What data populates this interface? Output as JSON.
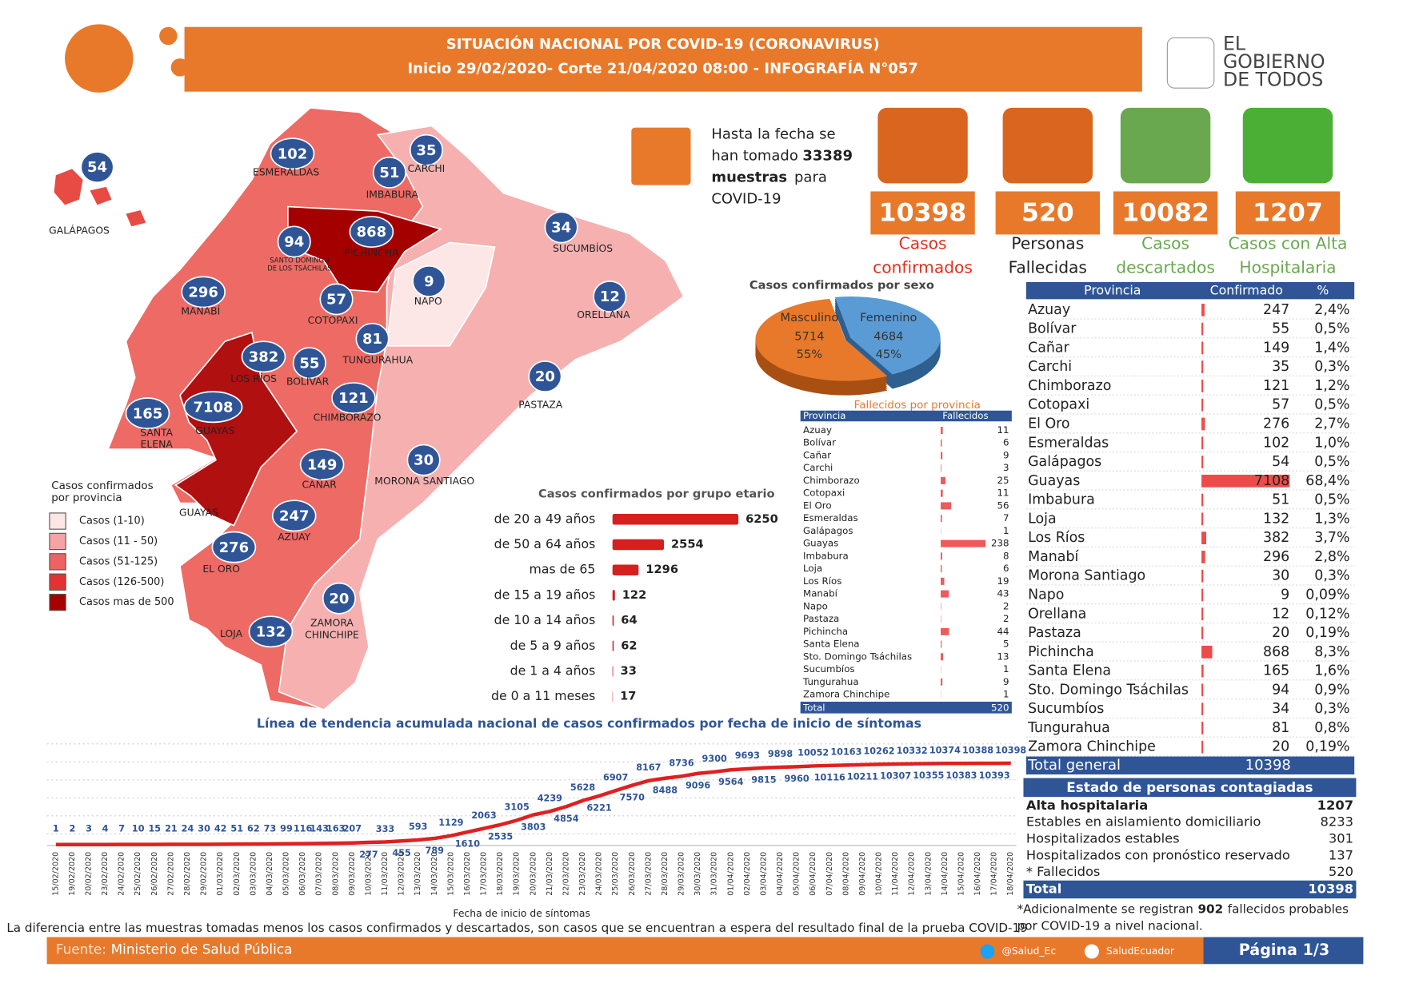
{
  "header": {
    "title": "SITUACIÓN NACIONAL POR  COVID-19 (CORONAVIRUS)",
    "subtitle": "Inicio 29/02/2020- Corte 21/04/2020 08:00  - INFOGRAFÍA N°057"
  },
  "logo": [
    "EL",
    "GOBIERNO",
    "DE TODOS"
  ],
  "samples": {
    "line1": "Hasta la fecha se",
    "line2": "han tomado",
    "count": 33389,
    "line3": "muestras",
    "line3b": "para",
    "line4": "COVID-19"
  },
  "kpis": [
    {
      "value": 10398,
      "label": [
        "Casos",
        "confirmados"
      ],
      "color": "#e0301e"
    },
    {
      "value": 520,
      "label": [
        "Personas",
        "Fallecidas"
      ],
      "color": "#222222"
    },
    {
      "value": 10082,
      "label": [
        "Casos",
        "descartados"
      ],
      "color": "#6aa84f"
    },
    {
      "value": 1207,
      "label": [
        "Casos con Alta",
        "Hospitalaria"
      ],
      "color": "#6aa84f"
    }
  ],
  "map": {
    "provinces": [
      {
        "name": [
          "GALÁPAGOS"
        ],
        "value": 54
      },
      {
        "name": [
          "ESMERALDAS"
        ],
        "value": 102
      },
      {
        "name": [
          "CARCHI"
        ],
        "value": 35
      },
      {
        "name": [
          "IMBABURA"
        ],
        "value": 51
      },
      {
        "name": [
          "PICHINCHA"
        ],
        "value": 868
      },
      {
        "name": [
          "SANTO DOMINGO",
          "DE LOS TSÁCHILAS"
        ],
        "value": 94
      },
      {
        "name": [
          "SUCUMBÍOS"
        ],
        "value": 34
      },
      {
        "name": [
          "NAPO"
        ],
        "value": 9
      },
      {
        "name": [
          "ORELLANA"
        ],
        "value": 12
      },
      {
        "name": [
          "MANABÍ"
        ],
        "value": 296
      },
      {
        "name": [
          "COTOPAXI"
        ],
        "value": 57
      },
      {
        "name": [
          "TUNGURAHUA"
        ],
        "value": 81
      },
      {
        "name": [
          "LOS RÍOS"
        ],
        "value": 382
      },
      {
        "name": [
          "BOLÍVAR"
        ],
        "value": 55
      },
      {
        "name": [
          "PASTAZA"
        ],
        "value": 20
      },
      {
        "name": [
          "CHIMBORAZO"
        ],
        "value": 121
      },
      {
        "name": [
          "SANTA",
          "ELENA"
        ],
        "value": 165
      },
      {
        "name": [
          "GUAYAS"
        ],
        "value": 7108
      },
      {
        "name": [
          "MORONA SANTIAGO"
        ],
        "value": 30
      },
      {
        "name": [
          "CAÑAR"
        ],
        "value": 149
      },
      {
        "name": [
          "AZUAY"
        ],
        "value": 247
      },
      {
        "name": [
          "EL ORO"
        ],
        "value": 276
      },
      {
        "name": [
          "ZAMORA",
          "CHINCHIPE"
        ],
        "value": 20
      },
      {
        "name": [
          "LOJA"
        ],
        "value": 132
      }
    ],
    "legend": {
      "title": [
        "Casos confirmados",
        "por provincia"
      ],
      "items": [
        {
          "label": "Casos (1-10)",
          "color": "#fde6e6"
        },
        {
          "label": "Casos (11 - 50)",
          "color": "#f5a3a3"
        },
        {
          "label": "Casos (51-125)",
          "color": "#ef6262"
        },
        {
          "label": "Casos (126-500)",
          "color": "#e43232"
        },
        {
          "label": "Casos mas de 500",
          "color": "#a80000"
        }
      ]
    }
  },
  "sex_pie": {
    "title": "Casos confirmados por sexo",
    "slices": [
      {
        "name": "Femenino",
        "value": 4684,
        "percent": "45%",
        "color": "#5b9bd5"
      },
      {
        "name": "Masculino",
        "value": 5714,
        "percent": "55%",
        "color": "#e8792b"
      }
    ]
  },
  "age_chart": {
    "title": "Casos confirmados por grupo etario",
    "categories": [
      "de 20 a 49 años",
      "de 50 a 64 años",
      "mas de 65",
      "de 15 a 19 años",
      "de 10 a 14 años",
      "de 5 a 9 años",
      "de 1 a 4 años",
      "de 0 a 11 meses"
    ],
    "values": [
      6250,
      2554,
      1296,
      122,
      64,
      62,
      33,
      17
    ],
    "color": "#d61f1f"
  },
  "deaths_table": {
    "title": "Fallecidos por provincia",
    "columns": [
      "Provincia",
      "Fallecidos"
    ],
    "rows": [
      [
        "Azuay",
        11
      ],
      [
        "Bolívar",
        6
      ],
      [
        "Cañar",
        9
      ],
      [
        "Carchi",
        3
      ],
      [
        "Chimborazo",
        25
      ],
      [
        "Cotopaxi",
        11
      ],
      [
        "El Oro",
        56
      ],
      [
        "Esmeraldas",
        7
      ],
      [
        "Galápagos",
        1
      ],
      [
        "Guayas",
        238
      ],
      [
        "Imbabura",
        8
      ],
      [
        "Loja",
        6
      ],
      [
        "Los Ríos",
        19
      ],
      [
        "Manabí",
        43
      ],
      [
        "Napo",
        2
      ],
      [
        "Pastaza",
        2
      ],
      [
        "Pichincha",
        44
      ],
      [
        "Santa Elena",
        5
      ],
      [
        "Sto. Domingo Tsáchilas",
        13
      ],
      [
        "Sucumbíos",
        1
      ],
      [
        "Tungurahua",
        9
      ],
      [
        "Zamora Chinchipe",
        1
      ]
    ],
    "total": [
      "Total",
      520
    ]
  },
  "province_table": {
    "columns": [
      "Provincia",
      "Confirmado",
      "%"
    ],
    "rows": [
      [
        "Azuay",
        247,
        "2,4%"
      ],
      [
        "Bolívar",
        55,
        "0,5%"
      ],
      [
        "Cañar",
        149,
        "1,4%"
      ],
      [
        "Carchi",
        35,
        "0,3%"
      ],
      [
        "Chimborazo",
        121,
        "1,2%"
      ],
      [
        "Cotopaxi",
        57,
        "0,5%"
      ],
      [
        "El Oro",
        276,
        "2,7%"
      ],
      [
        "Esmeraldas",
        102,
        "1,0%"
      ],
      [
        "Galápagos",
        54,
        "0,5%"
      ],
      [
        "Guayas",
        7108,
        "68,4%"
      ],
      [
        "Imbabura",
        51,
        "0,5%"
      ],
      [
        "Loja",
        132,
        "1,3%"
      ],
      [
        "Los Ríos",
        382,
        "3,7%"
      ],
      [
        "Manabí",
        296,
        "2,8%"
      ],
      [
        "Morona Santiago",
        30,
        "0,3%"
      ],
      [
        "Napo",
        9,
        "0,09%"
      ],
      [
        "Orellana",
        12,
        "0,12%"
      ],
      [
        "Pastaza",
        20,
        "0,19%"
      ],
      [
        "Pichincha",
        868,
        "8,3%"
      ],
      [
        "Santa Elena",
        165,
        "1,6%"
      ],
      [
        "Sto. Domingo Tsáchilas",
        94,
        "0,9%"
      ],
      [
        "Sucumbíos",
        34,
        "0,3%"
      ],
      [
        "Tungurahua",
        81,
        "0,8%"
      ],
      [
        "Zamora Chinchipe",
        20,
        "0,19%"
      ]
    ],
    "total": [
      "Total general",
      10398
    ]
  },
  "status_table": {
    "title": "Estado de personas contagiadas",
    "rows": [
      [
        "Alta hospitalaria",
        1207
      ],
      [
        "Estables en aislamiento domiciliario",
        8233
      ],
      [
        "Hospitalizados estables",
        301
      ],
      [
        "Hospitalizados con pronóstico reservado",
        137
      ],
      [
        "* Fallecidos",
        520
      ]
    ],
    "total": [
      "Total",
      10398
    ]
  },
  "footnote": {
    "before": "*Adicionalmente se registran",
    "count": 902,
    "after1": "fallecidos probables",
    "after2": "por COVID-19 a nivel nacional."
  },
  "trend": {
    "title": "Línea de tendencia acumulada nacional de casos confirmados por fecha de inicio de síntomas",
    "x_label": "Fecha de inicio de síntomas",
    "color": "#e02020",
    "x": [
      "15/02/2020",
      "19/02/2020",
      "20/02/2020",
      "23/02/2020",
      "24/02/2020",
      "25/02/2020",
      "26/02/2020",
      "27/02/2020",
      "28/02/2020",
      "29/02/2020",
      "01/03/2020",
      "02/03/2020",
      "03/03/2020",
      "04/03/2020",
      "05/03/2020",
      "06/03/2020",
      "07/03/2020",
      "08/03/2020",
      "09/03/2020",
      "10/03/2020",
      "11/03/2020",
      "12/03/2020",
      "13/03/2020",
      "14/03/2020",
      "15/03/2020",
      "16/03/2020",
      "17/03/2020",
      "18/03/2020",
      "19/03/2020",
      "20/03/2020",
      "21/03/2020",
      "22/03/2020",
      "23/03/2020",
      "24/03/2020",
      "25/03/2020",
      "26/03/2020",
      "27/03/2020",
      "28/03/2020",
      "29/03/2020",
      "30/03/2020",
      "31/03/2020",
      "01/04/2020",
      "02/04/2020",
      "03/04/2020",
      "04/04/2020",
      "05/04/2020",
      "06/04/2020",
      "07/04/2020",
      "08/04/2020",
      "09/04/2020",
      "10/04/2020",
      "11/04/2020",
      "12/04/2020",
      "13/04/2020",
      "14/04/2020",
      "15/04/2020",
      "16/04/2020",
      "17/04/2020",
      "18/04/2020"
    ],
    "values": [
      1,
      2,
      3,
      4,
      7,
      10,
      15,
      21,
      24,
      30,
      42,
      51,
      62,
      73,
      99,
      116,
      143,
      163,
      207,
      277,
      333,
      455,
      593,
      789,
      1129,
      1610,
      2063,
      2535,
      3105,
      3803,
      4239,
      4854,
      5628,
      6221,
      6907,
      7570,
      8167,
      8488,
      8736,
      9096,
      9300,
      9564,
      9693,
      9815,
      9898,
      9960,
      10052,
      10116,
      10163,
      10211,
      10262,
      10307,
      10332,
      10355,
      10374,
      10383,
      10388,
      10393,
      10398
    ]
  },
  "note": "La diferencia entre las muestras tomadas menos los casos confirmados y descartados, son casos que se encuentran a espera del resultado final de la prueba COVID-19",
  "footer": {
    "source_label": "Fuente:",
    "source": "Ministerio de Salud Pública",
    "twitter": "@Salud_Ec",
    "facebook": "SaludEcuador",
    "page": "Página 1/3"
  }
}
